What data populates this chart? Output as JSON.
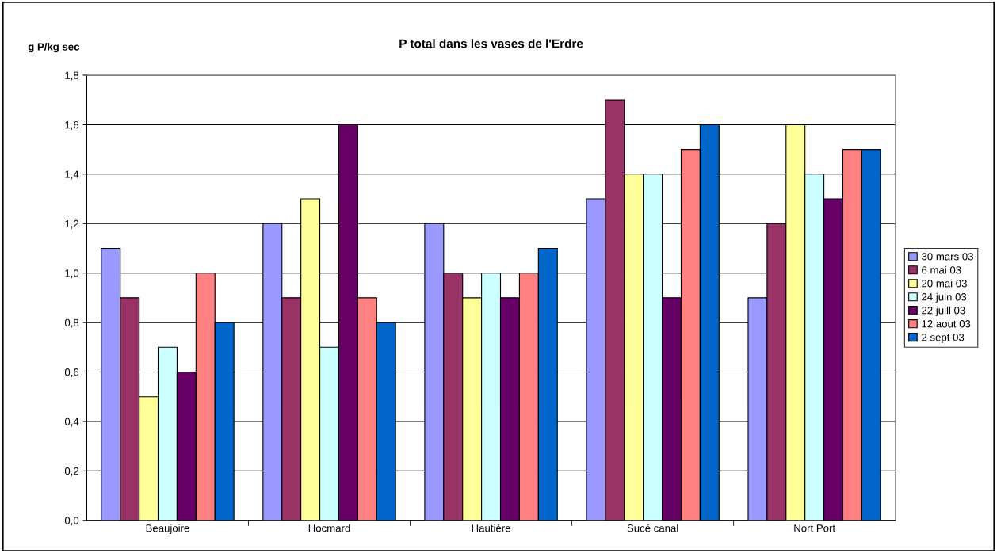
{
  "chart_data": {
    "type": "bar",
    "title": "P total dans les vases de l'Erdre",
    "ylabel": "g P/kg sec",
    "categories": [
      "Beaujoire",
      "Hocmard",
      "Hautière",
      "Sucé canal",
      "Nort Port"
    ],
    "series": [
      {
        "name": "30 mars 03",
        "color": "#9999ff",
        "values": [
          1.1,
          1.2,
          1.2,
          1.3,
          0.9
        ]
      },
      {
        "name": "6 mai 03",
        "color": "#993366",
        "values": [
          0.9,
          0.9,
          1.0,
          1.7,
          1.2
        ]
      },
      {
        "name": "20 mai 03",
        "color": "#ffff99",
        "values": [
          0.5,
          1.3,
          0.9,
          1.4,
          1.6
        ]
      },
      {
        "name": "24 juin 03",
        "color": "#ccffff",
        "values": [
          0.7,
          0.7,
          1.0,
          1.4,
          1.4
        ]
      },
      {
        "name": "22 juill 03",
        "color": "#660066",
        "values": [
          0.6,
          1.6,
          0.9,
          0.9,
          1.3
        ]
      },
      {
        "name": "12 aout 03",
        "color": "#ff8080",
        "values": [
          1.0,
          0.9,
          1.0,
          1.5,
          1.5
        ]
      },
      {
        "name": "2 sept 03",
        "color": "#0066cc",
        "values": [
          0.8,
          0.8,
          1.1,
          1.6,
          1.5
        ]
      }
    ],
    "ylim": [
      0,
      1.8
    ],
    "yticks": [
      {
        "value": 0,
        "label": "0,0"
      },
      {
        "value": 0.2,
        "label": "0,2"
      },
      {
        "value": 0.4,
        "label": "0,4"
      },
      {
        "value": 0.6,
        "label": "0,6"
      },
      {
        "value": 0.8,
        "label": "0,8"
      },
      {
        "value": 1.0,
        "label": "1,0"
      },
      {
        "value": 1.2,
        "label": "1,2"
      },
      {
        "value": 1.4,
        "label": "1,4"
      },
      {
        "value": 1.6,
        "label": "1,6"
      },
      {
        "value": 1.8,
        "label": "1,8"
      }
    ],
    "grid": "y",
    "legend": "right"
  }
}
